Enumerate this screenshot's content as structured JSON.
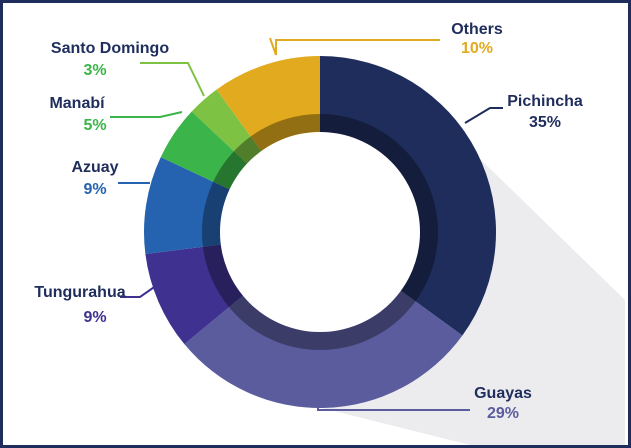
{
  "chart_data": {
    "type": "donut",
    "categories": [
      "Pichincha",
      "Guayas",
      "Tungurahua",
      "Azuay",
      "Manabí",
      "Santo Domingo",
      "Others"
    ],
    "values": [
      35,
      29,
      9,
      9,
      5,
      3,
      10
    ],
    "value_labels": [
      "35%",
      "29%",
      "9%",
      "9%",
      "5%",
      "3%",
      "10%"
    ],
    "colors": [
      "#1f2d5c",
      "#5b5c9e",
      "#3e3190",
      "#2563b0",
      "#3bb54a",
      "#7dc242",
      "#e2ab1f"
    ]
  }
}
